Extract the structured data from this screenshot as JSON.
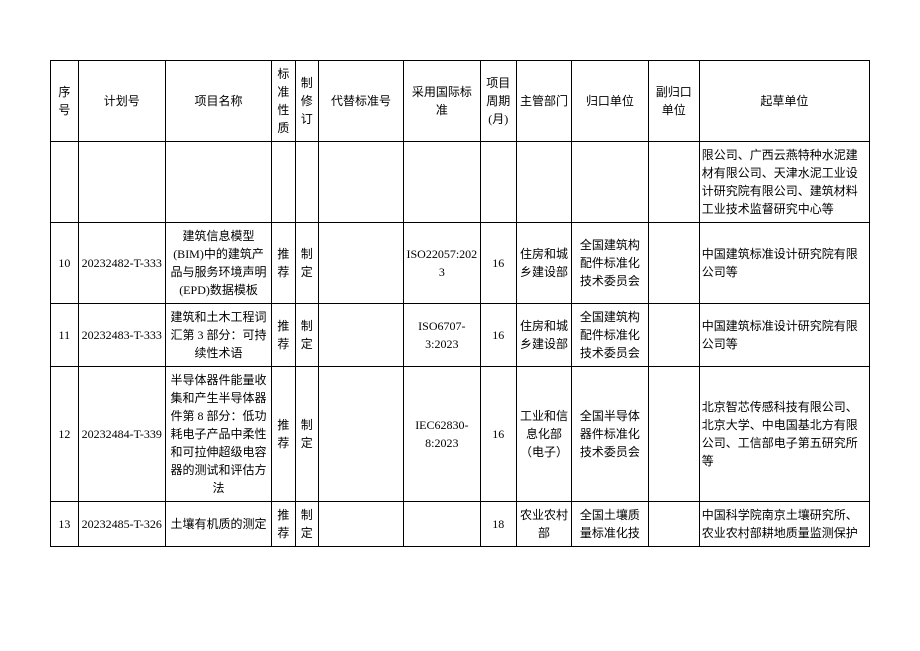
{
  "columns": {
    "seq": "序号",
    "plan": "计划号",
    "name": "项目名称",
    "std": "标准性质",
    "rev": "制修订",
    "repl": "代替标准号",
    "intl": "采用国际标准",
    "per": "项目周期(月)",
    "dept": "主管部门",
    "cent": "归口单位",
    "aux": "副归口单位",
    "draft": "起草单位"
  },
  "rows": [
    {
      "seq": "",
      "plan": "",
      "name": "",
      "std": "",
      "rev": "",
      "repl": "",
      "intl": "",
      "per": "",
      "dept": "",
      "cent": "",
      "aux": "",
      "draft": "限公司、广西云燕特种水泥建材有限公司、天津水泥工业设计研究院有限公司、建筑材料工业技术监督研究中心等"
    },
    {
      "seq": "10",
      "plan": "20232482-T-333",
      "name": "建筑信息模型(BIM)中的建筑产品与服务环境声明(EPD)数据模板",
      "std": "推荐",
      "rev": "制定",
      "repl": "",
      "intl": "ISO22057:2023",
      "per": "16",
      "dept": "住房和城乡建设部",
      "cent": "全国建筑构配件标准化技术委员会",
      "aux": "",
      "draft": "中国建筑标准设计研究院有限公司等"
    },
    {
      "seq": "11",
      "plan": "20232483-T-333",
      "name": "建筑和土木工程词汇第 3 部分：可持续性术语",
      "std": "推荐",
      "rev": "制定",
      "repl": "",
      "intl": "ISO6707-3:2023",
      "per": "16",
      "dept": "住房和城乡建设部",
      "cent": "全国建筑构配件标准化技术委员会",
      "aux": "",
      "draft": "中国建筑标准设计研究院有限公司等"
    },
    {
      "seq": "12",
      "plan": "20232484-T-339",
      "name": "半导体器件能量收集和产生半导体器件第 8 部分：低功耗电子产品中柔性和可拉伸超级电容器的测试和评估方法",
      "std": "推荐",
      "rev": "制定",
      "repl": "",
      "intl": "IEC62830-8:2023",
      "per": "16",
      "dept": "工业和信息化部（电子）",
      "cent": "全国半导体器件标准化技术委员会",
      "aux": "",
      "draft": "北京智芯传感科技有限公司、北京大学、中电国基北方有限公司、工信部电子第五研究所等"
    },
    {
      "seq": "13",
      "plan": "20232485-T-326",
      "name": "土壤有机质的测定",
      "std": "推荐",
      "rev": "制定",
      "repl": "",
      "intl": "",
      "per": "18",
      "dept": "农业农村部",
      "cent": "全国土壤质量标准化技",
      "aux": "",
      "draft": "中国科学院南京土壤研究所、农业农村部耕地质量监测保护"
    }
  ]
}
